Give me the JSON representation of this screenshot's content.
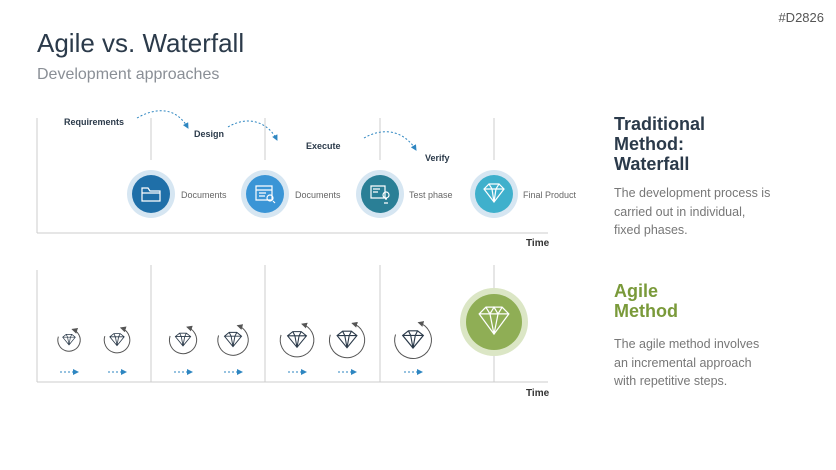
{
  "slide_id": "#D2826",
  "title": "Agile vs. Waterfall",
  "subtitle": "Development approaches",
  "waterfall": {
    "steps": [
      "Requirements",
      "Design",
      "Execute",
      "Verify"
    ],
    "outputs": [
      {
        "label": "Documents",
        "icon": "folder-icon",
        "color": "#1f6fa8"
      },
      {
        "label": "Documents",
        "icon": "search-document-icon",
        "color": "#3a95d6"
      },
      {
        "label": "Test phase",
        "icon": "idea-board-icon",
        "color": "#2a7f96"
      },
      {
        "label": "Final Product",
        "icon": "diamond-icon",
        "color": "#3fb0cc"
      }
    ],
    "time_label": "Time"
  },
  "agile": {
    "time_label": "Time",
    "accent_color": "#8fae55"
  },
  "traditional": {
    "heading": "Traditional Method: Waterfall",
    "text": "The development process is carried out in individual, fixed phases."
  },
  "agile_method": {
    "heading": "Agile Method",
    "text": "The agile method involves an incremental approach with repetitive steps."
  }
}
